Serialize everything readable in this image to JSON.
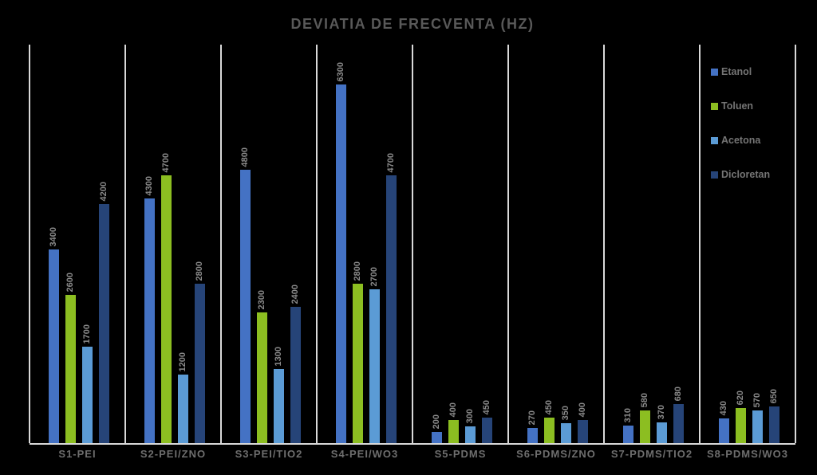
{
  "chart": {
    "background_color": "#000000",
    "title_color": "#595959",
    "gridline_color": "#D9D9D9",
    "data_label_color": "#8A8A8A",
    "category_label_color": "#6E6E6E",
    "legend_label_color": "#757575"
  },
  "chart_data": {
    "type": "bar",
    "title": "DEVIATIA DE FRECVENTA (HZ)",
    "xlabel": "",
    "ylabel": "",
    "ylim": [
      0,
      7000
    ],
    "y_axis_ticks_visible": false,
    "grid": "vertical category separators only",
    "data_labels": "rotated 90deg above each bar",
    "legend_position": "top-right inside plot",
    "categories": [
      "S1-PEI",
      "S2-PEI/ZNO",
      "S3-PEI/TIO2",
      "S4-PEI/WO3",
      "S5-PDMS",
      "S6-PDMS/ZNO",
      "S7-PDMS/TIO2",
      "S8-PDMS/WO3"
    ],
    "series": [
      {
        "name": "Etanol",
        "color": "#4472C4",
        "values": [
          3400,
          4300,
          4800,
          6300,
          200,
          270,
          310,
          430
        ]
      },
      {
        "name": "Toluen",
        "color": "#8CBE21",
        "values": [
          2600,
          4700,
          2300,
          2800,
          400,
          450,
          580,
          620
        ]
      },
      {
        "name": "Acetona",
        "color": "#5B9BD5",
        "values": [
          1700,
          1200,
          1300,
          2700,
          300,
          350,
          370,
          570
        ]
      },
      {
        "name": "Dicloretan",
        "color": "#264478",
        "values": [
          4200,
          2800,
          2400,
          4700,
          450,
          400,
          680,
          650
        ]
      }
    ]
  }
}
